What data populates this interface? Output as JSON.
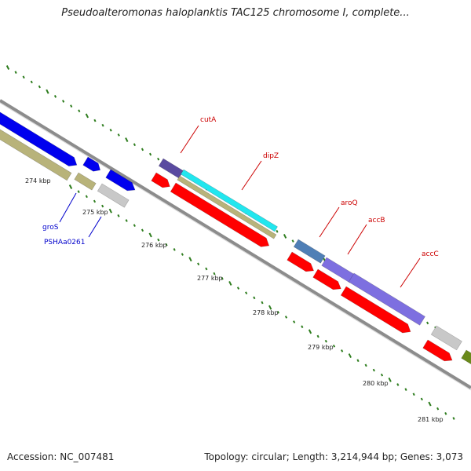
{
  "header": {
    "title": "Pseudoalteromonas haloplanktis TAC125 chromosome I, complete..."
  },
  "footer": {
    "accession": "Accession: NC_007481",
    "topology": "Topology: circular; Length: 3,214,944 bp; Genes: 3,073"
  },
  "colors": {
    "backbone": "#8c8c8c",
    "tick": "#2e7d1e",
    "label_red": "#cc0000",
    "label_blue": "#0000cc",
    "feature_red": "#ff0000",
    "feature_blue": "#0000ee",
    "feature_olive": "#b8b37a",
    "feature_gray": "#c8c8c8",
    "feature_cyan": "#22e6ee",
    "feature_indigo": "#5a4aa0",
    "feature_slate": "#4f7fb6",
    "feature_violet": "#7d6fe0",
    "feature_green": "#6a8a1a"
  },
  "map": {
    "ticks": [
      {
        "label": "274 kbp"
      },
      {
        "label": "275 kbp"
      },
      {
        "label": "276 kbp"
      },
      {
        "label": "277 kbp"
      },
      {
        "label": "278 kbp"
      },
      {
        "label": "279 kbp"
      },
      {
        "label": "280 kbp"
      },
      {
        "label": "281 kbp"
      }
    ],
    "gene_labels": [
      {
        "name": "cutA",
        "color": "red"
      },
      {
        "name": "dipZ",
        "color": "red"
      },
      {
        "name": "aroQ",
        "color": "red"
      },
      {
        "name": "accB",
        "color": "red"
      },
      {
        "name": "accC",
        "color": "red"
      },
      {
        "name": "groS",
        "color": "blue"
      },
      {
        "name": "PSHAa0261",
        "color": "blue"
      }
    ]
  }
}
